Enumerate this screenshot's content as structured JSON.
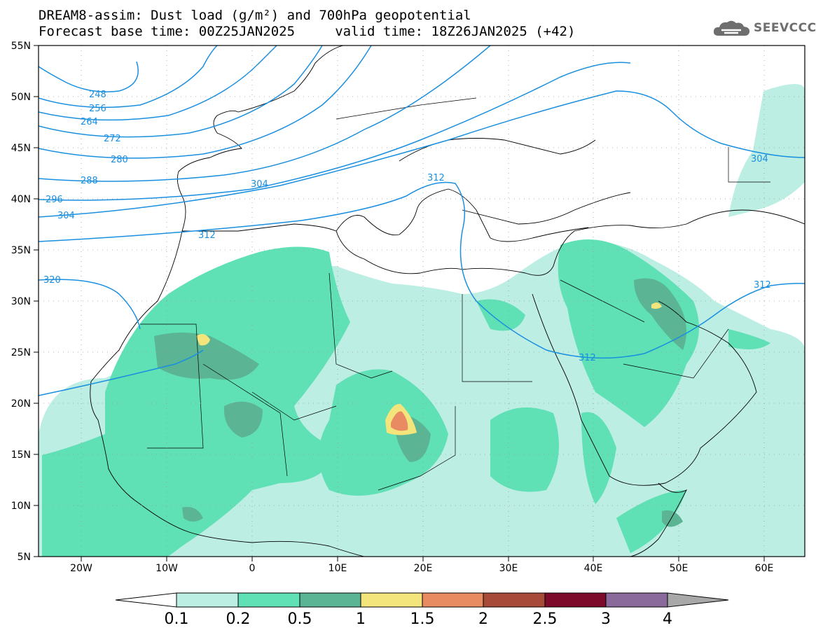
{
  "header": {
    "line1": "DREAM8-assim: Dust load (g/m²) and 700hPa geopotential",
    "line2": "Forecast base time: 00Z25JAN2025     valid time: 18Z26JAN2025 (+42)"
  },
  "logo": {
    "text": "SEEVCCC",
    "icon": "cloud-icon"
  },
  "map": {
    "lat_labels": [
      "55N",
      "50N",
      "45N",
      "40N",
      "35N",
      "30N",
      "25N",
      "20N",
      "15N",
      "10N",
      "5N"
    ],
    "lon_labels": [
      "20W",
      "10W",
      "0",
      "10E",
      "20E",
      "30E",
      "40E",
      "50E",
      "60E"
    ],
    "contour_labels": [
      "248",
      "256",
      "264",
      "272",
      "280",
      "288",
      "296",
      "304",
      "304",
      "312",
      "312",
      "320",
      "312",
      "312",
      "304"
    ],
    "colors": {
      "contour": "#1a8fe0",
      "coast": "#000000",
      "grid": "#9a9a9a"
    }
  },
  "colorbar": {
    "labels": [
      "0.1",
      "0.2",
      "0.5",
      "1",
      "1.5",
      "2",
      "2.5",
      "3",
      "4"
    ],
    "colors": [
      "#ffffff",
      "#bdeee3",
      "#5fe0b5",
      "#5bb493",
      "#f3e47b",
      "#e88a62",
      "#a84a3a",
      "#7d0a2a",
      "#8a6a9a",
      "#a8a8a8"
    ]
  }
}
